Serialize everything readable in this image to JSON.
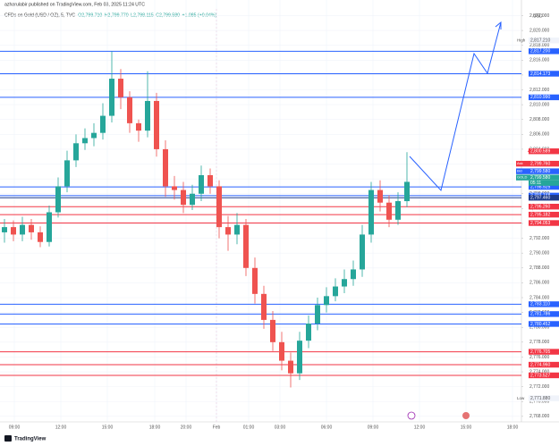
{
  "chart_data": {
    "type": "candlestick",
    "publisher": "azharulabir published on TradingView.com, Feb 03, 2025 11:24 UTC",
    "symbol": "CFDs on Gold (USD / OZ), 5, TVC",
    "ohlc_header": [
      "O2,799.710",
      "H2,799.770",
      "L2,798.115",
      "C2,799.580",
      "+1.085 (+0.04%)"
    ],
    "y_axis_label": "USD",
    "brand": "TradingView",
    "up_color": "#26a69a",
    "down_color": "#ef5350",
    "grid": true,
    "xlim": [
      -0.5,
      57.8
    ],
    "ylim": [
      2767.5,
      2822.9
    ],
    "xticks": [
      {
        "value": 1.1,
        "label": "09:00"
      },
      {
        "value": 6.3,
        "label": "12:00"
      },
      {
        "value": 11.5,
        "label": "15:00"
      },
      {
        "value": 16.8,
        "label": "18:00"
      },
      {
        "value": 20.3,
        "label": "20:00"
      },
      {
        "value": 23.7,
        "label": "Feb"
      },
      {
        "value": 27.3,
        "label": "01:00"
      },
      {
        "value": 30.8,
        "label": "03:00"
      },
      {
        "value": 36,
        "label": "06:00"
      },
      {
        "value": 41.2,
        "label": "09:00"
      },
      {
        "value": 46.4,
        "label": "12:00"
      },
      {
        "value": 51.6,
        "label": "15:00"
      },
      {
        "value": 56.8,
        "label": "18:00"
      }
    ],
    "yticks": [
      {
        "value": 2768,
        "label": "2,768.000"
      },
      {
        "value": 2770,
        "label": "2,770.000"
      },
      {
        "value": 2772,
        "label": "2,772.000"
      },
      {
        "value": 2774,
        "label": "2,774.000"
      },
      {
        "value": 2776,
        "label": "2,776.000"
      },
      {
        "value": 2778,
        "label": "2,778.000"
      },
      {
        "value": 2780,
        "label": "2,780.000"
      },
      {
        "value": 2782,
        "label": "2,782.000"
      },
      {
        "value": 2784,
        "label": "2,784.000"
      },
      {
        "value": 2786,
        "label": "2,786.000"
      },
      {
        "value": 2788,
        "label": "2,788.000"
      },
      {
        "value": 2790,
        "label": "2,790.000"
      },
      {
        "value": 2792,
        "label": "2,792.000"
      },
      {
        "value": 2794,
        "label": "2,794.000"
      },
      {
        "value": 2796,
        "label": "2,796.000"
      },
      {
        "value": 2798,
        "label": "2,798.000"
      },
      {
        "value": 2800,
        "label": "2,800.000"
      },
      {
        "value": 2802,
        "label": "2,802.000"
      },
      {
        "value": 2804,
        "label": "2,804.000"
      },
      {
        "value": 2806,
        "label": "2,806.000"
      },
      {
        "value": 2808,
        "label": "2,808.000"
      },
      {
        "value": 2810,
        "label": "2,810.000"
      },
      {
        "value": 2812,
        "label": "2,812.000"
      },
      {
        "value": 2814,
        "label": "2,814.000"
      },
      {
        "value": 2816,
        "label": "2,816.000"
      },
      {
        "value": 2818,
        "label": "2,818.000"
      },
      {
        "value": 2820,
        "label": "2,820.000"
      },
      {
        "value": 2822,
        "label": "2,822.000"
      }
    ],
    "open": [
      2792.8,
      2793.5,
      2792.5,
      2793.8,
      2792.8,
      2791.5,
      2795.5,
      2799.0,
      2802.5,
      2804.8,
      2805.5,
      2806.2,
      2808.5,
      2813.5,
      2811.0,
      2807.5,
      2806.5,
      2810.5,
      2804.0,
      2799.0,
      2798.5,
      2796.5,
      2798.0,
      2800.5,
      2799.0,
      2793.5,
      2792.5,
      2793.8,
      2788.0,
      2784.5,
      2781.0,
      2778.0,
      2775.5,
      2773.8,
      2778.2,
      2780.5,
      2783.0,
      2784.2,
      2785.5,
      2786.5,
      2787.8,
      2792.5,
      2798.5,
      2796.8,
      2794.5,
      2797.0
    ],
    "high": [
      2794.6,
      2794.4,
      2794.9,
      2794.6,
      2793.6,
      2796.4,
      2800.2,
      2803.8,
      2806.0,
      2806.8,
      2807.5,
      2810.2,
      2817.2,
      2814.8,
      2811.8,
      2808.0,
      2814.5,
      2811.6,
      2805.2,
      2800.4,
      2799.6,
      2799.2,
      2801.8,
      2801.4,
      2799.8,
      2795.0,
      2795.4,
      2794.6,
      2789.4,
      2785.6,
      2782.2,
      2779.4,
      2776.6,
      2779.4,
      2781.6,
      2784.0,
      2785.4,
      2786.6,
      2787.8,
      2789.0,
      2793.8,
      2799.6,
      2799.8,
      2797.8,
      2798.2,
      2803.6
    ],
    "low": [
      2791.4,
      2791.6,
      2791.6,
      2791.8,
      2790.8,
      2790.9,
      2794.8,
      2798.2,
      2801.6,
      2803.9,
      2804.4,
      2805.3,
      2807.6,
      2809.4,
      2806.2,
      2805.0,
      2805.6,
      2803.0,
      2797.6,
      2797.2,
      2795.4,
      2795.8,
      2797.0,
      2798.0,
      2792.0,
      2790.3,
      2791.2,
      2786.9,
      2783.2,
      2779.8,
      2776.8,
      2774.2,
      2771.9,
      2772.9,
      2777.2,
      2779.6,
      2782.0,
      2783.5,
      2784.6,
      2785.6,
      2786.8,
      2791.4,
      2795.6,
      2793.5,
      2793.8,
      2796.2
    ],
    "close": [
      2793.5,
      2792.5,
      2793.8,
      2792.8,
      2791.5,
      2795.5,
      2799.0,
      2802.5,
      2804.8,
      2805.5,
      2806.2,
      2808.5,
      2813.5,
      2811.0,
      2807.5,
      2806.5,
      2810.5,
      2804.0,
      2799.0,
      2798.5,
      2796.5,
      2798.0,
      2800.5,
      2799.0,
      2793.5,
      2792.5,
      2793.8,
      2788.0,
      2784.5,
      2781.0,
      2778.0,
      2775.5,
      2773.8,
      2778.2,
      2780.5,
      2783.0,
      2784.2,
      2785.5,
      2786.5,
      2787.8,
      2792.5,
      2798.5,
      2796.8,
      2794.5,
      2797.0,
      2799.6
    ],
    "levels": [
      {
        "value": 2817.2,
        "label": "2,817.200",
        "color": "#2962ff"
      },
      {
        "value": 2814.173,
        "label": "2,814.173",
        "color": "#2962ff"
      },
      {
        "value": 2810.99,
        "label": "2,810.990",
        "color": "#2962ff"
      },
      {
        "value": 2798.925,
        "label": "2,798.925",
        "color": "#2962ff"
      },
      {
        "value": 2797.748,
        "label": "2,797.748",
        "color": "#2962ff"
      },
      {
        "value": 2797.46,
        "label": "2,797.460",
        "color": "#1e3a8a"
      },
      {
        "value": 2796.26,
        "label": "2,796.260",
        "color": "#f23645"
      },
      {
        "value": 2795.182,
        "label": "2,795.182",
        "color": "#f23645"
      },
      {
        "value": 2794.053,
        "label": "2,794.053",
        "color": "#f23645"
      },
      {
        "value": 2783.11,
        "label": "2,783.110",
        "color": "#2962ff"
      },
      {
        "value": 2781.786,
        "label": "2,781.786",
        "color": "#2962ff"
      },
      {
        "value": 2780.452,
        "label": "2,780.452",
        "color": "#2962ff"
      },
      {
        "value": 2776.705,
        "label": "2,776.705",
        "color": "#f23645"
      },
      {
        "value": 2774.96,
        "label": "2,774.960",
        "color": "#f23645"
      },
      {
        "value": 2773.527,
        "label": "2,773.527",
        "color": "#f23645"
      }
    ],
    "extremes": [
      {
        "tag": "High",
        "value": 2817.21,
        "label": "2,817.210"
      },
      {
        "tag": "Low",
        "value": 2771.88,
        "label": "2,771.880"
      }
    ],
    "price_tags": [
      {
        "value": 2800.589,
        "label": "2,800.589",
        "color": "#f23645"
      },
      {
        "tag": "Ask",
        "value": 2799.76,
        "label": "2,799.760",
        "color": "#f23645"
      },
      {
        "tag": "Bid",
        "value": 2799.58,
        "label": "2,799.580",
        "color": "#2962ff"
      },
      {
        "tag": "GOLD",
        "value": 2799.58,
        "label": "2,799.580",
        "color": "#26a69a",
        "countdown": "05:11"
      }
    ]
  }
}
